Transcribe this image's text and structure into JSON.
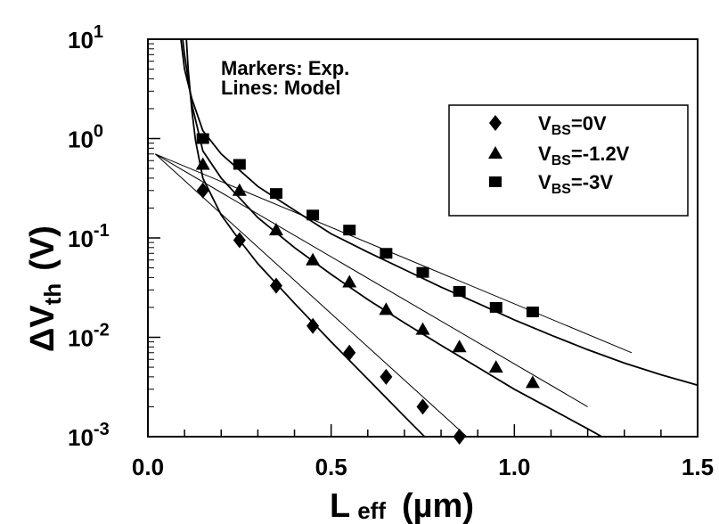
{
  "chart_data": {
    "type": "scatter",
    "xlabel": "L eff (µm)",
    "xlabel_parts": {
      "main": "L",
      "sub": "eff",
      "unit": "(µm)"
    },
    "ylabel": "ΔVth (V)",
    "ylabel_parts": {
      "main": "ΔV",
      "sub": "th",
      "unit": "(V)"
    },
    "xlim": [
      0.0,
      1.5
    ],
    "ylim": [
      0.001,
      10
    ],
    "yscale": "log",
    "x_ticks": [
      "0.0",
      "0.5",
      "1.0",
      "1.5"
    ],
    "y_ticks": [
      {
        "base": "10",
        "exp": "-3"
      },
      {
        "base": "10",
        "exp": "-2"
      },
      {
        "base": "10",
        "exp": "-1"
      },
      {
        "base": "10",
        "exp": "0"
      },
      {
        "base": "10",
        "exp": "1"
      }
    ],
    "annotations": [
      "Markers: Exp.",
      "Lines: Model"
    ],
    "legend_position": "top-right",
    "series": [
      {
        "name": "VBS=0V",
        "name_parts": {
          "main": "V",
          "sub": "BS",
          "rest": "=0V"
        },
        "marker": "diamond",
        "x": [
          0.15,
          0.25,
          0.35,
          0.45,
          0.55,
          0.65,
          0.75,
          0.85
        ],
        "y": [
          0.3,
          0.095,
          0.033,
          0.013,
          0.007,
          0.004,
          0.002,
          0.001
        ]
      },
      {
        "name": "VBS=-1.2V",
        "name_parts": {
          "main": "V",
          "sub": "BS",
          "rest": "=-1.2V"
        },
        "marker": "triangle",
        "x": [
          0.15,
          0.25,
          0.35,
          0.45,
          0.55,
          0.65,
          0.75,
          0.85,
          0.95,
          1.05
        ],
        "y": [
          0.55,
          0.3,
          0.12,
          0.06,
          0.036,
          0.019,
          0.012,
          0.008,
          0.005,
          0.0035
        ]
      },
      {
        "name": "VBS=-3V",
        "name_parts": {
          "main": "V",
          "sub": "BS",
          "rest": "=-3V"
        },
        "marker": "square",
        "x": [
          0.15,
          0.25,
          0.35,
          0.45,
          0.55,
          0.65,
          0.75,
          0.85,
          0.95,
          1.05
        ],
        "y": [
          1.0,
          0.55,
          0.28,
          0.17,
          0.12,
          0.07,
          0.045,
          0.029,
          0.02,
          0.018
        ]
      }
    ],
    "model_lines": [
      {
        "series": "VBS=0V",
        "style": "solid",
        "x": [
          0.105,
          0.11,
          0.12,
          0.13,
          0.15,
          0.2,
          0.25,
          0.3,
          0.4,
          0.5,
          0.6,
          0.7,
          0.8,
          0.85,
          0.9
        ],
        "y": [
          10,
          5.0,
          1.9,
          0.95,
          0.4,
          0.17,
          0.095,
          0.055,
          0.022,
          0.009,
          0.0038,
          0.0016,
          0.00068,
          0.00045,
          0.0003
        ]
      },
      {
        "series": "VBS=0V",
        "style": "thin",
        "x": [
          0.02,
          0.87
        ],
        "y": [
          0.7,
          0.001
        ]
      },
      {
        "series": "VBS=-1.2V",
        "style": "solid",
        "x": [
          0.095,
          0.1,
          0.12,
          0.15,
          0.2,
          0.3,
          0.4,
          0.5,
          0.6,
          0.7,
          0.8,
          0.9,
          1.0,
          1.1,
          1.2,
          1.3
        ],
        "y": [
          10,
          7.0,
          2.2,
          0.75,
          0.4,
          0.16,
          0.08,
          0.043,
          0.024,
          0.014,
          0.0083,
          0.005,
          0.003,
          0.0019,
          0.0012,
          0.00075
        ]
      },
      {
        "series": "VBS=-1.2V",
        "style": "thin",
        "x": [
          0.02,
          1.2
        ],
        "y": [
          0.7,
          0.002
        ]
      },
      {
        "series": "VBS=-3V",
        "style": "solid",
        "x": [
          0.09,
          0.1,
          0.12,
          0.15,
          0.2,
          0.3,
          0.4,
          0.5,
          0.6,
          0.7,
          0.8,
          0.9,
          1.0,
          1.1,
          1.2,
          1.3,
          1.4,
          1.5
        ],
        "y": [
          10,
          5.0,
          2.5,
          1.2,
          0.7,
          0.33,
          0.19,
          0.11,
          0.072,
          0.048,
          0.032,
          0.022,
          0.015,
          0.0105,
          0.0075,
          0.0055,
          0.0042,
          0.0033
        ]
      },
      {
        "series": "VBS=-3V",
        "style": "thin",
        "x": [
          0.02,
          1.32
        ],
        "y": [
          0.7,
          0.007
        ]
      }
    ]
  }
}
